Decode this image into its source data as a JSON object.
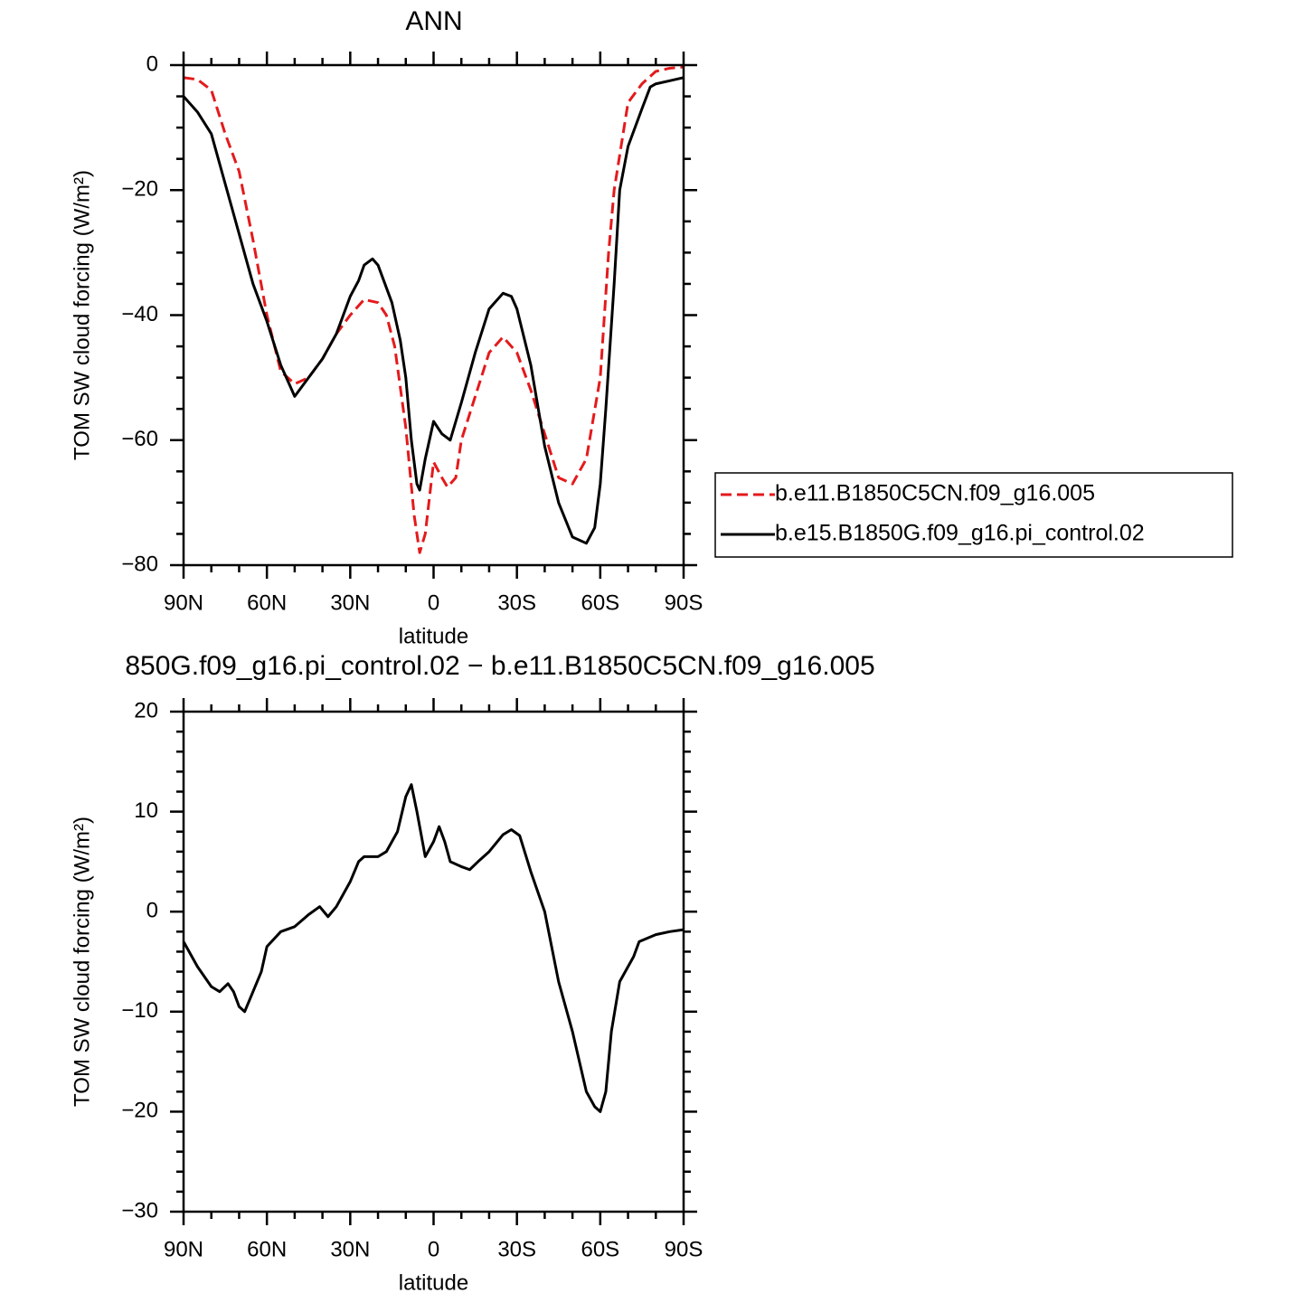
{
  "chart_data": [
    {
      "type": "line",
      "title": "ANN",
      "xlabel": "latitude",
      "ylabel": "TOM SW cloud forcing (W/m²)",
      "xlim": [
        90,
        -90
      ],
      "ylim": [
        -80,
        0
      ],
      "xticks": [
        {
          "value": 90,
          "label": "90N"
        },
        {
          "value": 60,
          "label": "60N"
        },
        {
          "value": 30,
          "label": "30N"
        },
        0,
        {
          "value": -30,
          "label": "30S"
        },
        {
          "value": -60,
          "label": "60S"
        },
        {
          "value": -90,
          "label": "90S"
        }
      ],
      "yticks": [
        0,
        {
          "value": -20,
          "label": "−20"
        },
        {
          "value": -40,
          "label": "−40"
        },
        {
          "value": -60,
          "label": "−60"
        },
        {
          "value": -80,
          "label": "−80"
        }
      ],
      "xminorticks": [
        80,
        70,
        50,
        40,
        20,
        10,
        -10,
        -20,
        -40,
        -50,
        -70,
        -80
      ],
      "yminorticks": [
        -5,
        -10,
        -15,
        -25,
        -30,
        -35,
        -45,
        -50,
        -55,
        -65,
        -70,
        -75
      ],
      "legend": "right",
      "series": [
        {
          "name": "b.e11.B1850C5CN.f09_g16.005",
          "color": "#e41a1c",
          "dash": true,
          "x": [
            90,
            85,
            80,
            75,
            70,
            65,
            60,
            55,
            50,
            45,
            40,
            35,
            30,
            25,
            20,
            17,
            14,
            10,
            7,
            5,
            3,
            0,
            -3,
            -5,
            -8,
            -10,
            -15,
            -20,
            -25,
            -30,
            -35,
            -40,
            -45,
            -50,
            -55,
            -60,
            -63,
            -65,
            -70,
            -75,
            -80,
            -85,
            -90
          ],
          "values": [
            -2,
            -2.3,
            -4,
            -11,
            -17,
            -28,
            -40,
            -49,
            -51,
            -50,
            -47,
            -43,
            -40,
            -37.5,
            -38,
            -40,
            -45,
            -58,
            -72,
            -78,
            -75,
            -63.5,
            -66,
            -67.5,
            -66,
            -60,
            -53,
            -46,
            -43.5,
            -46,
            -52,
            -59,
            -66,
            -67,
            -63,
            -50,
            -30,
            -20,
            -6,
            -3,
            -1,
            -0.5,
            -0.3
          ]
        },
        {
          "name": "b.e15.B1850G.f09_g16.pi_control.02",
          "color": "#000000",
          "dash": false,
          "x": [
            90,
            85,
            80,
            75,
            70,
            65,
            60,
            55,
            50,
            45,
            40,
            35,
            30,
            27,
            25,
            22,
            20,
            15,
            12,
            10,
            8,
            6,
            5,
            3,
            0,
            -3,
            -6,
            -10,
            -15,
            -20,
            -25,
            -28,
            -30,
            -35,
            -40,
            -45,
            -50,
            -55,
            -58,
            -60,
            -62,
            -65,
            -67,
            -70,
            -75,
            -78,
            -80,
            -85,
            -90
          ],
          "values": [
            -5,
            -7.5,
            -11,
            -19,
            -27,
            -35,
            -41,
            -48,
            -53,
            -50,
            -47,
            -43,
            -37,
            -34.5,
            -32,
            -31,
            -32,
            -38,
            -44,
            -50,
            -60,
            -67,
            -68,
            -63,
            -57,
            -59,
            -60,
            -54,
            -46,
            -39,
            -36.5,
            -37,
            -39,
            -48,
            -61,
            -70,
            -75.5,
            -76.5,
            -74,
            -67,
            -55,
            -35,
            -20,
            -13,
            -7,
            -3.5,
            -3,
            -2.5,
            -2
          ]
        }
      ]
    },
    {
      "type": "line",
      "title": "850G.f09_g16.pi_control.02 − b.e11.B1850C5CN.f09_g16.005",
      "xlabel": "latitude",
      "ylabel": "TOM SW cloud forcing (W/m²)",
      "xlim": [
        90,
        -90
      ],
      "ylim": [
        -30,
        20
      ],
      "xticks": [
        {
          "value": 90,
          "label": "90N"
        },
        {
          "value": 60,
          "label": "60N"
        },
        {
          "value": 30,
          "label": "30N"
        },
        0,
        {
          "value": -30,
          "label": "30S"
        },
        {
          "value": -60,
          "label": "60S"
        },
        {
          "value": -90,
          "label": "90S"
        }
      ],
      "yticks": [
        20,
        10,
        0,
        {
          "value": -10,
          "label": "−10"
        },
        {
          "value": -20,
          "label": "−20"
        },
        {
          "value": -30,
          "label": "−30"
        }
      ],
      "xminorticks": [
        80,
        70,
        50,
        40,
        20,
        10,
        -10,
        -20,
        -40,
        -50,
        -70,
        -80
      ],
      "yminorticks": [
        18,
        16,
        14,
        12,
        8,
        6,
        4,
        2,
        -2,
        -4,
        -6,
        -8,
        -12,
        -14,
        -16,
        -18,
        -22,
        -24,
        -26,
        -28
      ],
      "series": [
        {
          "color": "#000000",
          "dash": false,
          "x": [
            90,
            85,
            80,
            77,
            74,
            72,
            70,
            68,
            65,
            62,
            60,
            55,
            50,
            45,
            41,
            38,
            35,
            30,
            27,
            25,
            20,
            17,
            13,
            10,
            8,
            6,
            4,
            3,
            0,
            -2,
            -4,
            -6,
            -10,
            -13,
            -16,
            -20,
            -25,
            -28,
            -31,
            -35,
            -40,
            -45,
            -50,
            -55,
            -58,
            -60,
            -62,
            -64,
            -67,
            -70,
            -72,
            -74,
            -80,
            -85,
            -90
          ],
          "values": [
            -3,
            -5.5,
            -7.5,
            -8,
            -7.2,
            -8,
            -9.5,
            -10,
            -8,
            -6,
            -3.5,
            -2,
            -1.5,
            -0.3,
            0.5,
            -0.5,
            0.5,
            3,
            5,
            5.5,
            5.5,
            6,
            8,
            11.5,
            12.7,
            10,
            7,
            5.5,
            7,
            8.5,
            7,
            5,
            4.5,
            4.2,
            5,
            6,
            7.7,
            8.2,
            7.6,
            4,
            0,
            -7,
            -12,
            -18,
            -19.5,
            -20,
            -18,
            -12,
            -7,
            -5.5,
            -4.5,
            -3,
            -2.3,
            -2,
            -1.8
          ]
        }
      ]
    }
  ]
}
